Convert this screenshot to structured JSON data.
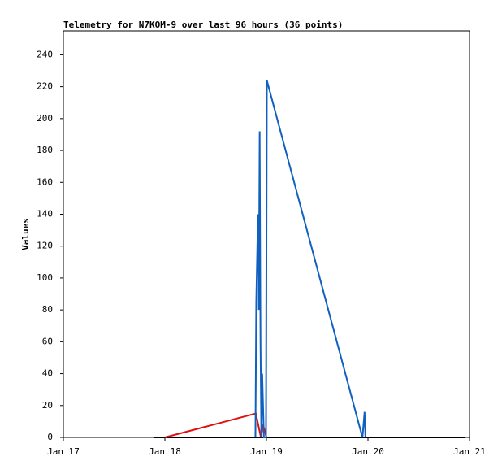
{
  "chart_data": {
    "type": "line",
    "title": "Telemetry for N7KOM-9 over last 96 hours (36 points)",
    "y_label": "Values",
    "xlim": [
      0,
      96
    ],
    "xticks": [
      {
        "value": 0,
        "label": "Jan 17"
      },
      {
        "value": 24,
        "label": "Jan 18"
      },
      {
        "value": 48,
        "label": "Jan 19"
      },
      {
        "value": 72,
        "label": "Jan 20"
      },
      {
        "value": 96,
        "label": "Jan 21"
      }
    ],
    "ylim": [
      0,
      255
    ],
    "yticks": [
      0,
      20,
      40,
      60,
      80,
      100,
      120,
      140,
      160,
      180,
      200,
      220,
      240
    ],
    "series": [
      {
        "color": "#000000",
        "x": [
          21.5,
          94.9
        ],
        "values": [
          0,
          0
        ]
      },
      {
        "color": "#e01010",
        "x": [
          24,
          45.5,
          46.7,
          47.2,
          48
        ],
        "values": [
          0,
          15,
          0,
          8,
          0
        ]
      },
      {
        "color": "#1060c0",
        "x": [
          45.4,
          45.6,
          46.0,
          46.2,
          46.4,
          46.6,
          46.8,
          47.0,
          47.4,
          47.9,
          48.1,
          70.7,
          71.2,
          71.4
        ],
        "values": [
          0,
          85,
          140,
          80,
          192,
          60,
          0,
          40,
          0,
          0,
          224,
          0,
          16,
          0
        ]
      }
    ]
  }
}
